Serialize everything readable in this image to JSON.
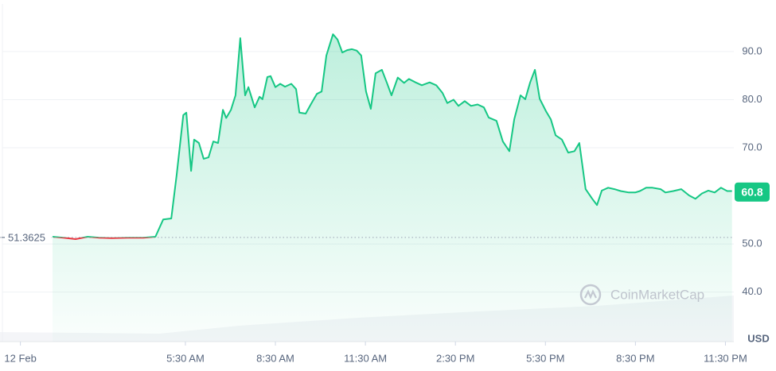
{
  "chart_data": {
    "type": "line",
    "series": [
      {
        "name": "Price",
        "color": "#16c784",
        "below_color": "#ea3943",
        "x": [
          1.07,
          1.44,
          1.84,
          2.24,
          2.64,
          3.04,
          3.57,
          4.1,
          4.5,
          4.76,
          5.03,
          5.21,
          5.43,
          5.53,
          5.69,
          5.79,
          5.95,
          6.11,
          6.27,
          6.43,
          6.59,
          6.75,
          6.86,
          7.02,
          7.17,
          7.33,
          7.49,
          7.6,
          7.81,
          7.97,
          8.07,
          8.23,
          8.34,
          8.5,
          8.66,
          8.82,
          9.03,
          9.19,
          9.3,
          9.51,
          9.67,
          9.88,
          10.04,
          10.2,
          10.42,
          10.57,
          10.73,
          10.89,
          11.05,
          11.21,
          11.36,
          11.52,
          11.68,
          11.84,
          12.05,
          12.21,
          12.37,
          12.58,
          12.79,
          12.95,
          13.17,
          13.38,
          13.64,
          13.86,
          14.07,
          14.23,
          14.44,
          14.6,
          14.81,
          15.02,
          15.24,
          15.45,
          15.61,
          15.87,
          16.08,
          16.3,
          16.46,
          16.67,
          16.83,
          16.99,
          17.15,
          17.31,
          17.52,
          17.68,
          17.84,
          18.05,
          18.26,
          18.47,
          18.63,
          18.84,
          19.06,
          19.22,
          19.38,
          19.59,
          19.8,
          20.01,
          20.28,
          20.49,
          20.65,
          20.86,
          21.07,
          21.34,
          21.5,
          21.76,
          22.03,
          22.29,
          22.5,
          22.72,
          22.93,
          23.14,
          23.35,
          23.56,
          23.72
        ],
        "values": [
          51.5,
          51.3,
          51.0,
          51.5,
          51.3,
          51.2,
          51.3,
          51.3,
          51.5,
          55.1,
          55.3,
          64.4,
          76.8,
          77.3,
          65.2,
          71.7,
          71.0,
          67.7,
          68.0,
          71.3,
          71.0,
          77.9,
          76.2,
          77.9,
          80.9,
          92.8,
          80.9,
          82.6,
          78.4,
          80.6,
          80.1,
          84.7,
          84.9,
          82.6,
          83.3,
          82.7,
          83.3,
          82.2,
          77.3,
          77.1,
          78.9,
          81.2,
          81.7,
          89.2,
          93.6,
          92.5,
          89.8,
          90.3,
          90.5,
          90.2,
          89.2,
          81.7,
          78.1,
          85.5,
          86.2,
          83.6,
          80.9,
          84.6,
          83.5,
          84.3,
          83.6,
          83.0,
          83.6,
          83.0,
          81.4,
          79.3,
          80.0,
          78.7,
          79.7,
          78.7,
          79.0,
          78.4,
          76.3,
          75.6,
          71.3,
          69.3,
          75.9,
          80.9,
          80.1,
          83.6,
          86.2,
          80.2,
          77.6,
          75.9,
          72.6,
          71.7,
          69.0,
          69.3,
          71.0,
          61.4,
          59.4,
          58.1,
          61.1,
          61.7,
          61.4,
          61.0,
          60.7,
          60.7,
          61.0,
          61.7,
          61.7,
          61.4,
          60.7,
          61.0,
          61.4,
          60.1,
          59.4,
          60.5,
          61.1,
          60.7,
          61.7,
          61.0,
          61.0
        ]
      }
    ],
    "baseline": 51.3625,
    "last_price": 60.8,
    "currency": "USD",
    "watermark": "CoinMarketCap",
    "xlim": [
      -0.68,
      23.78
    ],
    "xticks": [
      {
        "value": 0,
        "label": "12 Feb"
      },
      {
        "value": 5.5,
        "label": "5:30 AM"
      },
      {
        "value": 8.5,
        "label": "8:30 AM"
      },
      {
        "value": 11.5,
        "label": "11:30 AM"
      },
      {
        "value": 14.5,
        "label": "2:30 PM"
      },
      {
        "value": 17.5,
        "label": "5:30 PM"
      },
      {
        "value": 20.5,
        "label": "8:30 PM"
      },
      {
        "value": 23.5,
        "label": "11:30 PM"
      }
    ],
    "ylim": [
      29.7,
      99.9
    ],
    "yticks": [
      {
        "value": 40,
        "label": "40.0"
      },
      {
        "value": 50,
        "label": "50.0"
      },
      {
        "value": 70,
        "label": "70.0"
      },
      {
        "value": 80,
        "label": "80.0"
      },
      {
        "value": 90,
        "label": "90.0"
      }
    ],
    "grid": true
  }
}
